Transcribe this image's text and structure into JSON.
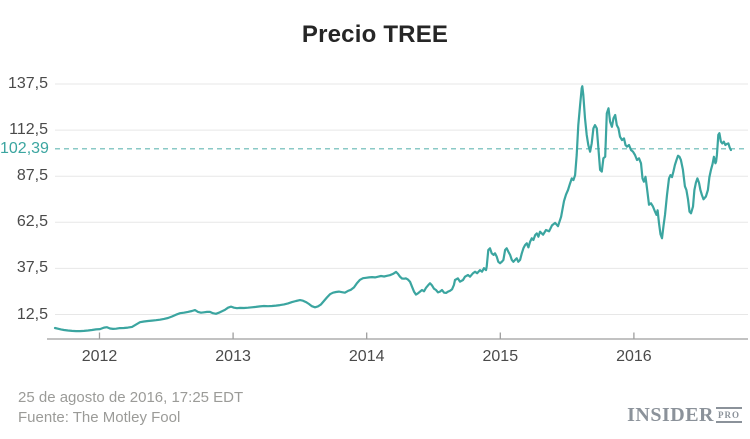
{
  "title": "Precio TREE",
  "footer": {
    "line1": "25 de agosto de 2016, 17:25 EDT",
    "line2": "Fuente: The Motley Fool"
  },
  "logo": {
    "brand": "INSIDER",
    "suffix": "PRO"
  },
  "colors": {
    "line": "#3ba5a0",
    "reference_dash": "#8ac9c6",
    "reference_label": "#3ba5a0",
    "grid": "#e7e7e7",
    "axis": "#9e9e9e",
    "tick_label": "#4a4a4a",
    "title": "#262626",
    "footer_text": "#9b9b98",
    "logo_gray": "#8b929a",
    "background": "#ffffff"
  },
  "chart_data": {
    "type": "line",
    "title": "Precio TREE",
    "grid": true,
    "y_ticks": [
      {
        "label": "137,5",
        "value": 137.5
      },
      {
        "label": "112,5",
        "value": 112.5
      },
      {
        "label": "87,5",
        "value": 87.5
      },
      {
        "label": "62,5",
        "value": 62.5
      },
      {
        "label": "37,5",
        "value": 37.5
      },
      {
        "label": "12,5",
        "value": 12.5
      }
    ],
    "x_ticks": [
      {
        "label": "2012",
        "year": 2012
      },
      {
        "label": "2013",
        "year": 2013
      },
      {
        "label": "2014",
        "year": 2014
      },
      {
        "label": "2015",
        "year": 2015
      },
      {
        "label": "2016",
        "year": 2016
      }
    ],
    "reference_line": {
      "label": "102,39",
      "value": 102.39
    },
    "x_range": [
      2011.667,
      2016.854
    ],
    "series": [
      {
        "name": "TREE",
        "points": [
          [
            2011.667,
            5.2
          ],
          [
            2011.689,
            4.8
          ],
          [
            2011.712,
            4.4
          ],
          [
            2011.734,
            4.1
          ],
          [
            2011.764,
            3.8
          ],
          [
            2011.794,
            3.6
          ],
          [
            2011.824,
            3.5
          ],
          [
            2011.854,
            3.5
          ],
          [
            2011.884,
            3.6
          ],
          [
            2011.914,
            3.8
          ],
          [
            2011.944,
            4.1
          ],
          [
            2011.974,
            4.4
          ],
          [
            2012.004,
            4.6
          ],
          [
            2012.034,
            5.4
          ],
          [
            2012.056,
            5.6
          ],
          [
            2012.079,
            4.9
          ],
          [
            2012.101,
            4.7
          ],
          [
            2012.124,
            4.8
          ],
          [
            2012.153,
            5.1
          ],
          [
            2012.183,
            5.2
          ],
          [
            2012.213,
            5.4
          ],
          [
            2012.243,
            5.8
          ],
          [
            2012.273,
            7.0
          ],
          [
            2012.303,
            8.3
          ],
          [
            2012.333,
            8.7
          ],
          [
            2012.363,
            9.0
          ],
          [
            2012.393,
            9.2
          ],
          [
            2012.423,
            9.4
          ],
          [
            2012.453,
            9.7
          ],
          [
            2012.483,
            10.1
          ],
          [
            2012.513,
            10.6
          ],
          [
            2012.543,
            11.4
          ],
          [
            2012.573,
            12.4
          ],
          [
            2012.603,
            13.2
          ],
          [
            2012.632,
            13.5
          ],
          [
            2012.662,
            13.9
          ],
          [
            2012.692,
            14.4
          ],
          [
            2012.715,
            14.9
          ],
          [
            2012.737,
            13.9
          ],
          [
            2012.76,
            13.5
          ],
          [
            2012.782,
            13.7
          ],
          [
            2012.805,
            13.9
          ],
          [
            2012.827,
            13.9
          ],
          [
            2012.849,
            13.2
          ],
          [
            2012.872,
            12.9
          ],
          [
            2012.894,
            13.5
          ],
          [
            2012.917,
            14.3
          ],
          [
            2012.939,
            15.0
          ],
          [
            2012.962,
            16.2
          ],
          [
            2012.984,
            16.8
          ],
          [
            2013.007,
            16.2
          ],
          [
            2013.029,
            15.9
          ],
          [
            2013.052,
            16.1
          ],
          [
            2013.082,
            16.0
          ],
          [
            2013.112,
            16.2
          ],
          [
            2013.141,
            16.4
          ],
          [
            2013.171,
            16.6
          ],
          [
            2013.201,
            16.9
          ],
          [
            2013.231,
            17.1
          ],
          [
            2013.261,
            17.0
          ],
          [
            2013.291,
            17.1
          ],
          [
            2013.321,
            17.3
          ],
          [
            2013.351,
            17.6
          ],
          [
            2013.381,
            18.0
          ],
          [
            2013.411,
            18.5
          ],
          [
            2013.441,
            19.2
          ],
          [
            2013.471,
            19.8
          ],
          [
            2013.501,
            20.3
          ],
          [
            2013.523,
            20.0
          ],
          [
            2013.546,
            19.2
          ],
          [
            2013.568,
            18.2
          ],
          [
            2013.59,
            17.0
          ],
          [
            2013.613,
            16.4
          ],
          [
            2013.635,
            16.9
          ],
          [
            2013.658,
            18.0
          ],
          [
            2013.68,
            19.8
          ],
          [
            2013.703,
            21.8
          ],
          [
            2013.725,
            23.5
          ],
          [
            2013.748,
            24.3
          ],
          [
            2013.77,
            24.7
          ],
          [
            2013.792,
            24.9
          ],
          [
            2013.815,
            24.6
          ],
          [
            2013.837,
            24.3
          ],
          [
            2013.86,
            25.3
          ],
          [
            2013.882,
            25.9
          ],
          [
            2013.905,
            27.2
          ],
          [
            2013.927,
            29.5
          ],
          [
            2013.95,
            31.3
          ],
          [
            2013.972,
            32.2
          ],
          [
            2013.995,
            32.4
          ],
          [
            2014.017,
            32.6
          ],
          [
            2014.04,
            32.8
          ],
          [
            2014.062,
            32.6
          ],
          [
            2014.085,
            33.0
          ],
          [
            2014.107,
            33.4
          ],
          [
            2014.13,
            33.1
          ],
          [
            2014.152,
            33.5
          ],
          [
            2014.174,
            33.8
          ],
          [
            2014.197,
            34.5
          ],
          [
            2014.219,
            35.6
          ],
          [
            2014.234,
            34.5
          ],
          [
            2014.249,
            33.0
          ],
          [
            2014.264,
            32.0
          ],
          [
            2014.279,
            31.9
          ],
          [
            2014.294,
            32.1
          ],
          [
            2014.309,
            31.4
          ],
          [
            2014.324,
            30.3
          ],
          [
            2014.339,
            27.6
          ],
          [
            2014.354,
            24.9
          ],
          [
            2014.369,
            23.3
          ],
          [
            2014.384,
            24.0
          ],
          [
            2014.399,
            24.9
          ],
          [
            2014.414,
            25.8
          ],
          [
            2014.429,
            25.1
          ],
          [
            2014.444,
            27.0
          ],
          [
            2014.459,
            28.3
          ],
          [
            2014.474,
            29.4
          ],
          [
            2014.489,
            28.3
          ],
          [
            2014.504,
            26.5
          ],
          [
            2014.519,
            25.8
          ],
          [
            2014.534,
            24.5
          ],
          [
            2014.549,
            24.9
          ],
          [
            2014.564,
            25.8
          ],
          [
            2014.579,
            24.3
          ],
          [
            2014.594,
            24.2
          ],
          [
            2014.609,
            24.9
          ],
          [
            2014.624,
            25.4
          ],
          [
            2014.639,
            26.2
          ],
          [
            2014.653,
            28.5
          ],
          [
            2014.661,
            31.2
          ],
          [
            2014.683,
            32.1
          ],
          [
            2014.698,
            30.3
          ],
          [
            2014.721,
            31.2
          ],
          [
            2014.736,
            33.0
          ],
          [
            2014.758,
            33.9
          ],
          [
            2014.773,
            33.0
          ],
          [
            2014.796,
            34.9
          ],
          [
            2014.811,
            35.7
          ],
          [
            2014.826,
            34.9
          ],
          [
            2014.848,
            36.6
          ],
          [
            2014.863,
            35.7
          ],
          [
            2014.878,
            37.6
          ],
          [
            2014.893,
            36.6
          ],
          [
            2014.898,
            38.4
          ],
          [
            2014.91,
            47.5
          ],
          [
            2014.923,
            48.4
          ],
          [
            2014.936,
            45.7
          ],
          [
            2014.95,
            44.8
          ],
          [
            2014.96,
            45.7
          ],
          [
            2014.973,
            43.9
          ],
          [
            2014.985,
            41.1
          ],
          [
            2014.998,
            40.3
          ],
          [
            2015.011,
            41.1
          ],
          [
            2015.023,
            42.1
          ],
          [
            2015.036,
            47.5
          ],
          [
            2015.048,
            48.4
          ],
          [
            2015.06,
            46.6
          ],
          [
            2015.073,
            44.8
          ],
          [
            2015.086,
            42.1
          ],
          [
            2015.098,
            41.1
          ],
          [
            2015.111,
            42.1
          ],
          [
            2015.123,
            43.0
          ],
          [
            2015.135,
            41.1
          ],
          [
            2015.148,
            42.1
          ],
          [
            2015.161,
            45.7
          ],
          [
            2015.173,
            48.4
          ],
          [
            2015.186,
            50.2
          ],
          [
            2015.198,
            51.1
          ],
          [
            2015.21,
            48.9
          ],
          [
            2015.223,
            52.0
          ],
          [
            2015.236,
            53.8
          ],
          [
            2015.248,
            52.9
          ],
          [
            2015.261,
            55.6
          ],
          [
            2015.273,
            56.5
          ],
          [
            2015.285,
            54.7
          ],
          [
            2015.297,
            57.4
          ],
          [
            2015.32,
            55.8
          ],
          [
            2015.342,
            58.3
          ],
          [
            2015.365,
            57.6
          ],
          [
            2015.387,
            60.8
          ],
          [
            2015.41,
            62.2
          ],
          [
            2015.432,
            60.4
          ],
          [
            2015.455,
            65.5
          ],
          [
            2015.477,
            74.0
          ],
          [
            2015.492,
            77.5
          ],
          [
            2015.507,
            80.0
          ],
          [
            2015.522,
            83.5
          ],
          [
            2015.535,
            86.3
          ],
          [
            2015.547,
            85.4
          ],
          [
            2015.56,
            88.1
          ],
          [
            2015.572,
            99.0
          ],
          [
            2015.584,
            115.2
          ],
          [
            2015.597,
            126.1
          ],
          [
            2015.609,
            135.2
          ],
          [
            2015.614,
            136.3
          ],
          [
            2015.621,
            131.6
          ],
          [
            2015.634,
            118.9
          ],
          [
            2015.647,
            109.9
          ],
          [
            2015.659,
            104.4
          ],
          [
            2015.672,
            100.8
          ],
          [
            2015.684,
            105.3
          ],
          [
            2015.697,
            113.4
          ],
          [
            2015.709,
            115.2
          ],
          [
            2015.722,
            113.4
          ],
          [
            2015.734,
            102.6
          ],
          [
            2015.747,
            90.9
          ],
          [
            2015.76,
            90.0
          ],
          [
            2015.772,
            97.2
          ],
          [
            2015.785,
            98.1
          ],
          [
            2015.797,
            121.6
          ],
          [
            2015.81,
            124.3
          ],
          [
            2015.822,
            117.0
          ],
          [
            2015.835,
            114.3
          ],
          [
            2015.847,
            118.9
          ],
          [
            2015.86,
            120.7
          ],
          [
            2015.872,
            115.2
          ],
          [
            2015.885,
            113.4
          ],
          [
            2015.896,
            108.9
          ],
          [
            2015.911,
            107.1
          ],
          [
            2015.926,
            108.0
          ],
          [
            2015.937,
            104.4
          ],
          [
            2015.948,
            103.5
          ],
          [
            2015.963,
            104.4
          ],
          [
            2015.978,
            101.7
          ],
          [
            2015.993,
            100.8
          ],
          [
            2016.008,
            99.0
          ],
          [
            2016.023,
            96.3
          ],
          [
            2016.038,
            97.2
          ],
          [
            2016.053,
            94.5
          ],
          [
            2016.064,
            86.3
          ],
          [
            2016.075,
            84.5
          ],
          [
            2016.087,
            87.2
          ],
          [
            2016.098,
            80.9
          ],
          [
            2016.113,
            72.0
          ],
          [
            2016.128,
            72.8
          ],
          [
            2016.143,
            71.0
          ],
          [
            2016.158,
            68.3
          ],
          [
            2016.169,
            66.5
          ],
          [
            2016.177,
            69.0
          ],
          [
            2016.188,
            62.0
          ],
          [
            2016.199,
            56.0
          ],
          [
            2016.21,
            53.8
          ],
          [
            2016.222,
            61.0
          ],
          [
            2016.233,
            66.5
          ],
          [
            2016.248,
            77.3
          ],
          [
            2016.263,
            86.3
          ],
          [
            2016.274,
            88.1
          ],
          [
            2016.285,
            87.0
          ],
          [
            2016.296,
            90.0
          ],
          [
            2016.307,
            93.6
          ],
          [
            2016.319,
            96.3
          ],
          [
            2016.33,
            98.6
          ],
          [
            2016.341,
            98.0
          ],
          [
            2016.352,
            96.3
          ],
          [
            2016.367,
            91.0
          ],
          [
            2016.382,
            82.0
          ],
          [
            2016.393,
            80.0
          ],
          [
            2016.405,
            75.0
          ],
          [
            2016.416,
            68.3
          ],
          [
            2016.427,
            67.4
          ],
          [
            2016.442,
            71.0
          ],
          [
            2016.453,
            80.0
          ],
          [
            2016.464,
            84.0
          ],
          [
            2016.475,
            86.3
          ],
          [
            2016.487,
            84.0
          ],
          [
            2016.498,
            80.0
          ],
          [
            2016.509,
            77.3
          ],
          [
            2016.521,
            75.0
          ],
          [
            2016.539,
            76.5
          ],
          [
            2016.554,
            80.0
          ],
          [
            2016.565,
            87.0
          ],
          [
            2016.577,
            91.0
          ],
          [
            2016.588,
            94.0
          ],
          [
            2016.599,
            98.0
          ],
          [
            2016.61,
            94.5
          ],
          [
            2016.615,
            95.4
          ],
          [
            2016.621,
            99.0
          ],
          [
            2016.627,
            105.0
          ],
          [
            2016.632,
            109.9
          ],
          [
            2016.64,
            110.8
          ],
          [
            2016.651,
            106.2
          ],
          [
            2016.662,
            105.3
          ],
          [
            2016.673,
            106.2
          ],
          [
            2016.685,
            104.4
          ],
          [
            2016.696,
            105.0
          ],
          [
            2016.707,
            105.3
          ],
          [
            2016.717,
            103.0
          ],
          [
            2016.726,
            101.7
          ]
        ]
      }
    ]
  }
}
